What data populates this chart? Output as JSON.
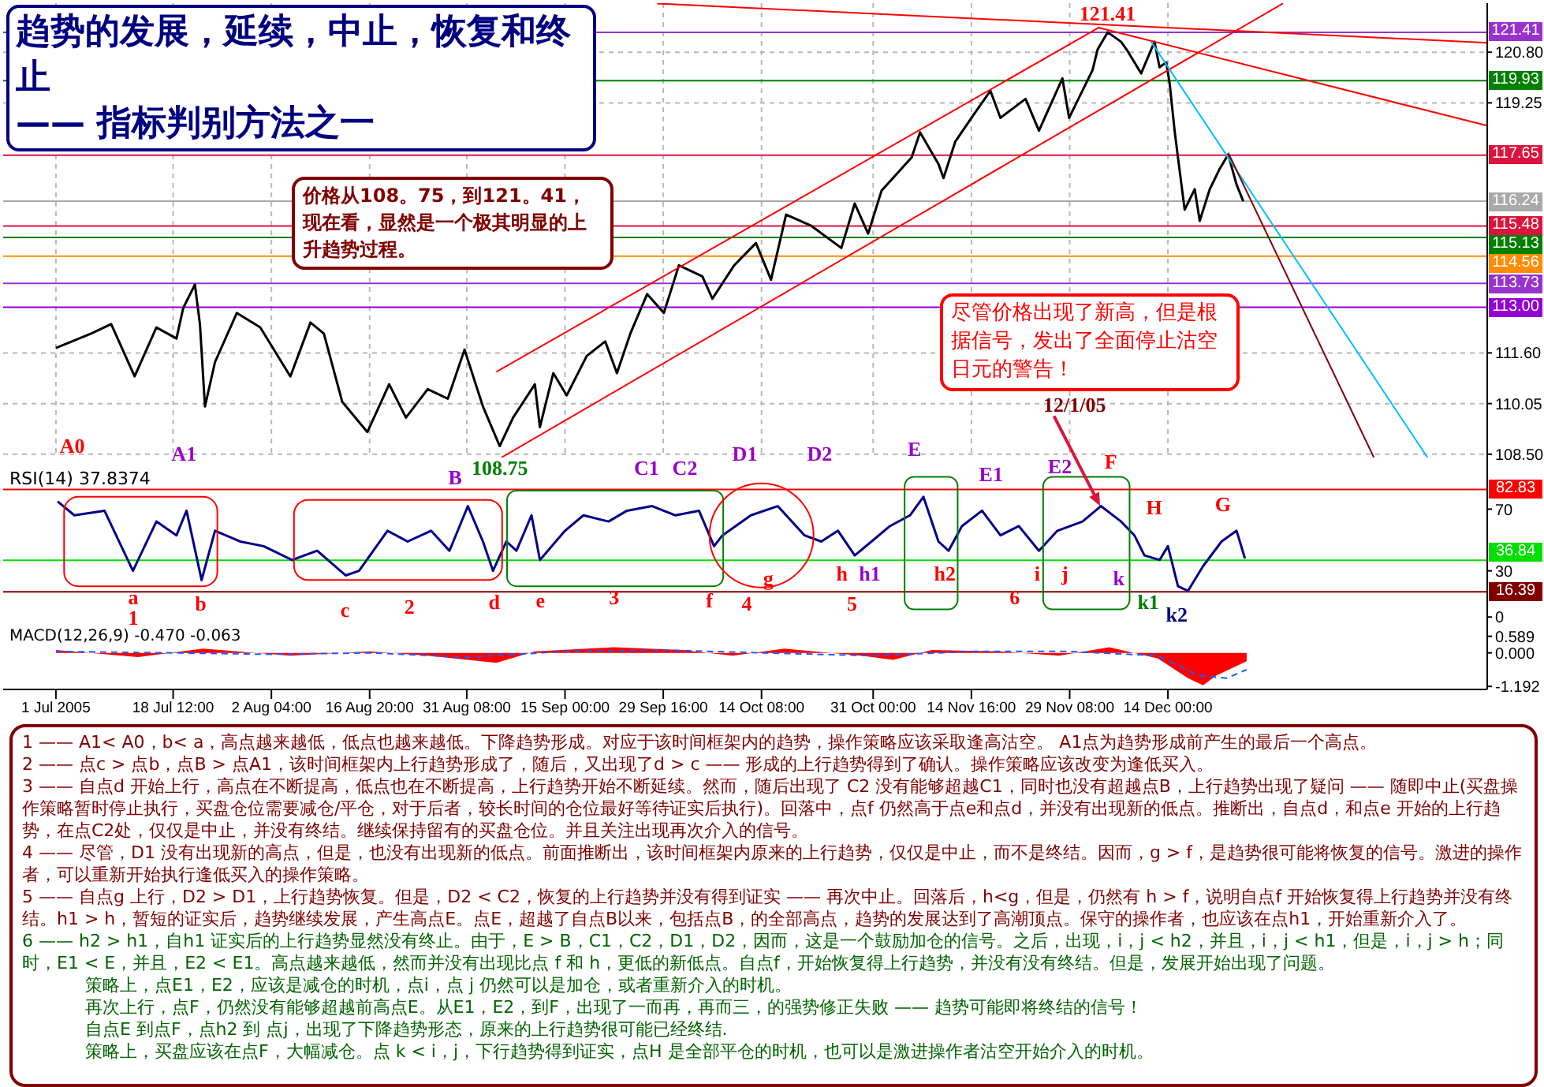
{
  "chart_data": [
    {
      "type": "line",
      "title": "趋势的发展，延续，中止，恢复和终止",
      "subtitle": "—— 指标判别方法之一",
      "annotations": [
        "价格从108。75，到121。41，现在看，显然是一个极其明显的上升趋势过程。",
        "尽管价格出现了新高，但是根据信号，发出了全面停止沽空日元的警告！",
        "A0",
        "A1",
        "D1",
        "D2",
        "E",
        "12/1/05",
        {
          "text": "121.41",
          "x": "2005-12-05T00:00",
          "y": 121.41
        },
        {
          "text": "108.75",
          "x": "2005-09-05T06:00",
          "y": 108.75
        }
      ],
      "series": [
        {
          "color": "#000000",
          "x": [
            "2005-07-01T00:00",
            "2005-07-06T06:00",
            "2005-07-09T06:00",
            "2005-07-12T18:00",
            "2005-07-16T00:00",
            "2005-07-19T00:00",
            "2005-07-20T00:00",
            "2005-07-21T18:00",
            "2005-07-22T12:00",
            "2005-07-23T06:00",
            "2005-07-24T18:00",
            "2005-07-28T00:00",
            "2005-07-31T12:00",
            "2005-08-05T00:00",
            "2005-08-08T00:00",
            "2005-08-10T00:00",
            "2005-08-12T18:00",
            "2005-08-16T12:00",
            "2005-08-19T18:00",
            "2005-08-22T06:00",
            "2005-08-25T12:00",
            "2005-08-28T12:00",
            "2005-08-31T00:00",
            "2005-09-02T18:00",
            "2005-09-05T06:00",
            "2005-09-07T06:00",
            "2005-09-10T12:00",
            "2005-09-11T06:00",
            "2005-09-13T06:00",
            "2005-09-15T06:00",
            "2005-09-18T06:00",
            "2005-09-21T00:00",
            "2005-09-22T18:00",
            "2005-09-24T18:00",
            "2005-09-27T06:00",
            "2005-09-29T18:00",
            "2005-10-02T00:00",
            "2005-10-05T12:00",
            "2005-10-07T00:00",
            "2005-10-10T06:00",
            "2005-10-13T12:00",
            "2005-10-15T18:00",
            "2005-10-18T00:00",
            "2005-10-21T18:00",
            "2005-10-26T06:00",
            "2005-10-28T06:00",
            "2005-10-30T06:00",
            "2005-11-01T06:00",
            "2005-11-05T18:00",
            "2005-11-07T00:00",
            "2005-11-09T18:00",
            "2005-11-10T12:00",
            "2005-11-12T06:00",
            "2005-11-15T00:00",
            "2005-11-17T12:00",
            "2005-11-19T00:00",
            "2005-11-22T18:00",
            "2005-11-24T18:00",
            "2005-11-28T06:00",
            "2005-11-29T06:00",
            "2005-12-02T18:00",
            "2005-12-03T12:00",
            "2005-12-05T00:00",
            "2005-12-07T00:00",
            "2005-12-08T00:00",
            "2005-12-10T00:00",
            "2005-12-12T00:00",
            "2005-12-12T18:00",
            "2005-12-13T18:00",
            "2005-12-14T06:00",
            "2005-12-15T00:00",
            "2005-12-15T12:00",
            "2005-12-16T12:00",
            "2005-12-18T00:00",
            "2005-12-18T18:00",
            "2005-12-20T06:00",
            "2005-12-21T18:00",
            "2005-12-23T00:00",
            "2005-12-24T06:00",
            "2005-12-25T06:00"
          ],
          "values": [
            111.75,
            112.19,
            112.48,
            110.88,
            112.38,
            112.04,
            112.97,
            113.69,
            112.48,
            109.96,
            111.32,
            112.82,
            112.38,
            110.88,
            112.53,
            112.19,
            110.1,
            109.18,
            110.64,
            109.62,
            110.49,
            110.2,
            111.7,
            109.96,
            108.75,
            109.62,
            110.64,
            109.33,
            110.98,
            110.3,
            111.51,
            111.95,
            110.98,
            112.19,
            113.4,
            112.82,
            114.28,
            113.94,
            113.26,
            114.28,
            114.96,
            113.84,
            115.83,
            115.49,
            114.81,
            116.17,
            115.25,
            116.56,
            117.58,
            118.35,
            117.38,
            116.95,
            118.06,
            118.89,
            119.62,
            118.79,
            119.37,
            118.4,
            120,
            118.79,
            120.25,
            120.88,
            121.41,
            121.12,
            120.83,
            120.15,
            121.12,
            120.34,
            120.49,
            119.86,
            118.4,
            117.58,
            115.98,
            116.61,
            115.64,
            116.61,
            117.24,
            117.67,
            116.75,
            116.24
          ]
        },
        {
          "color": "#ff0000",
          "x": [
            "2005-09-05T12:00",
            "2005-12-31T04:00"
          ],
          "values": [
            108.4,
            122.29
          ]
        },
        {
          "color": "#ff0000",
          "x": [
            "2005-09-04T18:00",
            "2005-12-03T18:00"
          ],
          "values": [
            111.02,
            121.56
          ]
        },
        {
          "color": "#ff0000",
          "x": [
            "2005-09-28T18:00",
            "2006-01-30T16:00"
          ],
          "values": [
            122.29,
            121.09
          ]
        },
        {
          "color": "#ff0000",
          "x": [
            "2005-12-03T12:00",
            "2006-01-30T16:00"
          ],
          "values": [
            121.56,
            118.55
          ]
        },
        {
          "color": "#00bfff",
          "x": [
            "2005-12-11T12:00",
            "2006-01-21T18:00"
          ],
          "values": [
            121.12,
            108.4
          ]
        },
        {
          "color": "#800000",
          "x": [
            "2005-12-23T00:00",
            "2006-01-13T18:00"
          ],
          "values": [
            117.72,
            108.4
          ]
        }
      ],
      "xlim": [
        "2005-06-23T03:00",
        "2006-01-30T16:00"
      ],
      "xticks": [
        {
          "value": "2005-07-01T00:00",
          "label": null
        },
        {
          "value": "2005-07-18T12:00",
          "label": null
        },
        {
          "value": "2005-08-02T04:00",
          "label": null
        },
        {
          "value": "2005-08-16T20:00",
          "label": null
        },
        {
          "value": "2005-08-31T08:00",
          "label": null
        },
        {
          "value": "2005-09-15T00:00",
          "label": null
        },
        {
          "value": "2005-09-29T16:00",
          "label": null
        },
        {
          "value": "2005-10-14T08:00",
          "label": null
        },
        {
          "value": "2005-10-31T00:00",
          "label": null
        },
        {
          "value": "2005-11-14T16:00",
          "label": null
        },
        {
          "value": "2005-11-29T08:00",
          "label": null
        },
        {
          "value": "2005-12-14T00:00",
          "label": null
        }
      ],
      "ylim": [
        108.4,
        122.3
      ],
      "yticks": [
        {
          "value": 108.5,
          "label": "108.50"
        },
        110.05,
        {
          "value": 111.6,
          "label": "111.60"
        },
        119.25,
        {
          "value": 120.8,
          "label": "120.80"
        }
      ],
      "ref_lines": [
        {
          "axis": "y",
          "value": 121.41,
          "label": "121.41",
          "color": "#9932cc"
        },
        {
          "axis": "y",
          "value": 119.93,
          "label": "119.93",
          "color": "#008000"
        },
        {
          "axis": "y",
          "value": 117.65,
          "label": "117.65",
          "color": "#dc143c"
        },
        {
          "axis": "y",
          "value": 116.24,
          "label": "116.24",
          "color": "#a9a9a9"
        },
        {
          "axis": "y",
          "value": 115.48,
          "label": "115.48",
          "color": "#dc143c"
        },
        {
          "axis": "y",
          "value": 115.13,
          "label": "115.13",
          "color": "#008000"
        },
        {
          "axis": "y",
          "value": 114.56,
          "label": "114.56",
          "color": "#ff8c00"
        },
        {
          "axis": "y",
          "value": 113.73,
          "label": "113.73",
          "color": "#9932cc"
        },
        {
          "axis": "y",
          "value": 113,
          "label": "113.00",
          "color": "#9400d3"
        }
      ],
      "grid": true,
      "tick_labels": "y"
    },
    {
      "type": "line",
      "annotations": [
        "RSI(14) 37.8374",
        "B",
        "C1",
        "C2",
        "E1",
        "E2",
        "F",
        "H",
        "G",
        "a",
        "b",
        "1",
        "c",
        "2",
        "d",
        "e",
        "3",
        "f",
        "4",
        "g",
        "h",
        "h1",
        "5",
        "h2",
        "6",
        "i",
        "j",
        "k",
        "k1",
        "k2"
      ],
      "series": [
        {
          "color": "#00008b",
          "x": [
            "2005-07-01T06:00",
            "2005-07-03T18:00",
            "2005-07-08T06:00",
            "2005-07-12T12:00",
            "2005-07-16T00:00",
            "2005-07-19T00:00",
            "2005-07-20T12:00",
            "2005-07-22T18:00",
            "2005-07-24T18:00",
            "2005-07-28T12:00",
            "2005-08-01T00:00",
            "2005-08-05T06:00",
            "2005-08-09T00:00",
            "2005-08-13T06:00",
            "2005-08-15T06:00",
            "2005-08-19T12:00",
            "2005-08-22T12:00",
            "2005-08-26T00:00",
            "2005-08-28T18:00",
            "2005-08-31T12:00",
            "2005-09-02T18:00",
            "2005-09-04T06:00",
            "2005-09-06T06:00",
            "2005-09-07T18:00",
            "2005-09-10T00:00",
            "2005-09-11T06:00",
            "2005-09-15T00:00",
            "2005-09-17T18:00",
            "2005-09-21T12:00",
            "2005-09-24T06:00",
            "2005-09-28T00:00",
            "2005-10-01T12:00",
            "2005-10-05T00:00",
            "2005-10-07T06:00",
            "2005-10-08T12:00",
            "2005-10-12T18:00",
            "2005-10-16T18:00",
            "2005-10-20T18:00",
            "2005-10-23T06:00",
            "2005-10-25T18:00",
            "2005-10-28T06:00",
            "2005-10-30T18:00",
            "2005-11-02T12:00",
            "2005-11-05T12:00",
            "2005-11-07T12:00",
            "2005-11-09T18:00",
            "2005-11-11T06:00",
            "2005-11-13T06:00",
            "2005-11-16T06:00",
            "2005-11-19T00:00",
            "2005-11-21T18:00",
            "2005-11-24T18:00",
            "2005-11-27T12:00",
            "2005-12-01T06:00",
            "2005-12-04T00:00",
            "2005-12-07T00:00",
            "2005-12-09T00:00",
            "2005-12-10T12:00",
            "2005-12-12T18:00",
            "2005-12-14T00:00",
            "2005-12-15T12:00",
            "2005-12-17T00:00",
            "2005-12-19T06:00",
            "2005-12-22T00:00",
            "2005-12-24T06:00",
            "2005-12-25T12:00"
          ],
          "values": [
            75,
            66,
            69,
            30,
            62,
            53,
            69,
            24,
            56,
            49,
            46,
            37,
            43,
            27,
            30,
            56,
            49,
            56,
            43,
            72,
            49,
            30,
            49,
            43,
            66,
            37,
            56,
            66,
            62,
            69,
            72,
            66,
            69,
            46,
            53,
            66,
            72,
            53,
            49,
            56,
            40,
            49,
            59,
            66,
            78,
            49,
            43,
            59,
            69,
            53,
            59,
            43,
            56,
            62,
            72,
            62,
            53,
            40,
            37,
            46,
            20,
            17,
            33,
            49,
            56,
            38
          ]
        }
      ],
      "xlim": [
        "2005-06-23T03:00",
        "2006-01-30T16:00"
      ],
      "ylim": [
        -5,
        103.5
      ],
      "yticks": [
        0,
        30,
        70
      ],
      "ref_lines": [
        {
          "axis": "y",
          "value": 82.83,
          "label": "82.83",
          "color": "#ff0000"
        },
        {
          "axis": "y",
          "value": 36.84,
          "label": "36.84",
          "color": "#00e000"
        },
        {
          "axis": "y",
          "value": 16.39,
          "label": "16.39",
          "color": "#800000"
        }
      ],
      "tick_labels": "y"
    },
    {
      "type": "area",
      "annotations": [
        "MACD(12,26,9) -0.470 -0.063"
      ],
      "series": [
        {
          "color": "#ff0000",
          "x": [
            "2005-07-01T00:00",
            "2005-07-13T06:00",
            "2005-07-23T00:00",
            "2005-08-05T00:00",
            "2005-08-16T20:00",
            "2005-08-25T12:00",
            "2005-09-04T18:00",
            "2005-09-10T12:00",
            "2005-09-22T06:00",
            "2005-10-02T12:00",
            "2005-10-10T00:00",
            "2005-10-17T18:00",
            "2005-10-29T06:00",
            "2005-11-03T00:00",
            "2005-11-08T18:00",
            "2005-11-19T00:00",
            "2005-11-27T18:00",
            "2005-12-05T06:00",
            "2005-12-12T12:00",
            "2005-12-17T00:00",
            "2005-12-19T06:00",
            "2005-12-21T06:00",
            "2005-12-25T18:00"
          ],
          "values": [
            0.1,
            -0.15,
            0.15,
            -0.1,
            0.05,
            -0.1,
            -0.35,
            0.05,
            0.2,
            0.1,
            -0.1,
            0.15,
            -0.1,
            -0.25,
            0.1,
            0.05,
            -0.1,
            0.2,
            -0.2,
            -0.9,
            -1.15,
            -0.8,
            -0.3
          ]
        },
        {
          "type": "line",
          "color": "#1e5aff",
          "line_style": "dashed",
          "x": [
            "2005-07-01T00:00",
            "2005-07-18T12:00",
            "2005-08-02T04:00",
            "2005-08-16T20:00",
            "2005-08-31T08:00",
            "2005-09-15T00:00",
            "2005-09-29T16:00",
            "2005-10-14T08:00",
            "2005-10-31T00:00",
            "2005-11-14T16:00",
            "2005-11-29T08:00",
            "2005-12-12T12:00",
            "2005-12-18T12:00",
            "2005-12-22T18:00",
            "2005-12-25T18:00"
          ],
          "values": [
            0.05,
            0,
            -0.05,
            0,
            -0.15,
            0.05,
            0.1,
            0,
            -0.1,
            0.05,
            0.05,
            -0.1,
            -0.8,
            -0.9,
            -0.6
          ]
        }
      ],
      "xlim": [
        "2005-06-23T03:00",
        "2006-01-30T16:00"
      ],
      "xticks": [
        {
          "value": "2005-07-01T00:00",
          "label": "1 Jul 2005"
        },
        {
          "value": "2005-07-18T12:00",
          "label": "18 Jul 12:00"
        },
        {
          "value": "2005-08-02T04:00",
          "label": "2 Aug 04:00"
        },
        {
          "value": "2005-08-16T20:00",
          "label": "16 Aug 20:00"
        },
        {
          "value": "2005-08-31T08:00",
          "label": "31 Aug 08:00"
        },
        {
          "value": "2005-09-15T00:00",
          "label": "15 Sep 00:00"
        },
        {
          "value": "2005-09-29T16:00",
          "label": "29 Sep 16:00"
        },
        {
          "value": "2005-10-14T08:00",
          "label": "14 Oct 08:00"
        },
        {
          "value": "2005-10-31T00:00",
          "label": "31 Oct 00:00"
        },
        {
          "value": "2005-11-14T16:00",
          "label": "14 Nov 16:00"
        },
        {
          "value": "2005-11-29T08:00",
          "label": "29 Nov 08:00"
        },
        {
          "value": "2005-12-14T00:00",
          "label": "14 Dec 00:00"
        }
      ],
      "ylim": [
        -1.3,
        1.0
      ],
      "yticks": [
        {
          "value": -1.192,
          "label": "-1.192"
        },
        {
          "value": 0,
          "label": "0.000"
        },
        {
          "value": 0.589,
          "label": "0.589"
        }
      ]
    },
    {
      "type": "other",
      "annotations": [
        "1 —— A1< A0，b< a，高点越来越低，低点也越来越低。下降趋势形成。对应于该时间框架内的趋势，操作策略应该采取逢高沽空。 A1点为趋势形成前产生的最后一个高点。",
        "2 —— 点c > 点b，点B > 点A1，该时间框架内上行趋势形成了，随后，又出现了d > c —— 形成的上行趋势得到了确认。操作策略应该改变为逢低买入。",
        "3 —— 自点d 开始上行，高点在不断提高，低点也在不断提高，上行趋势开始不断延续。然而，随后出现了 C2 没有能够超越C1，同时也没有超越点B，上行趋势出现了疑问 —— 随即中止(买盘操作策略暂时停止执行，买盘仓位需要减仓/平仓，对于后者，较长时间的仓位最好等待证实后执行)。回落中，点f 仍然高于点e和点d，并没有出现新的低点。推断出，自点d，和点e 开始的上行趋势，在点C2处，仅仅是中止，并没有终结。继续保持留有的买盘仓位。并且关注出现再次介入的信号。",
        "4 —— 尽管，D1 没有出现新的高点，但是，也没有出现新的低点。前面推断出，该时间框架内原来的上行趋势，仅仅是中止，而不是终结。因而，g > f，是趋势很可能将恢复的信号。激进的操作者，可以重新开始执行逢低买入的操作策略。",
        "5 —— 自点g 上行，D2 > D1，上行趋势恢复。但是，D2 < C2，恢复的上行趋势并没有得到证实 —— 再次中止。回落后，h<g，但是，仍然有 h > f，说明自点f 开始恢复得上行趋势并没有终结。h1 > h，暂短的证实后，趋势继续发展，产生高点E。点E，超越了自点B以来，包括点B，的全部高点，趋势的发展达到了高潮顶点。保守的操作者，也应该在点h1，开始重新介入了。",
        "6 —— h2 > h1，自h1 证实后的上行趋势显然没有终止。由于，E > B，C1，C2，D1，D2，因而，这是一个鼓励加仓的信号。之后，出现，i，j < h2，并且，i，j < h1，但是，i，j > h；同时，E1 < E，并且，E2 < E1。高点越来越低，然而并没有出现比点 f 和 h，更低的新低点。自点f，开始恢复得上行趋势，并没有没有终结。但是，发展开始出现了问题。",
        "策略上，点E1，E2，应该是减仓的时机，点i，点 j 仍然可以是加仓，或者重新介入的时机。",
        "再次上行，点F，仍然没有能够超越前高点E。从E1，E2，到F，出现了一而再，再而三，的强势修正失败 —— 趋势可能即将终结的信号！",
        "自点E 到点F，点h2 到 点j，出现了下降趋势形态，原来的上行趋势很可能已经终结.",
        "策略上，买盘应该在点F，大幅减仓。点 k < i，j，下行趋势得到证实，点H 是全部平仓的时机，也可以是激进操作者沽空开始介入的时机。"
      ]
    }
  ]
}
